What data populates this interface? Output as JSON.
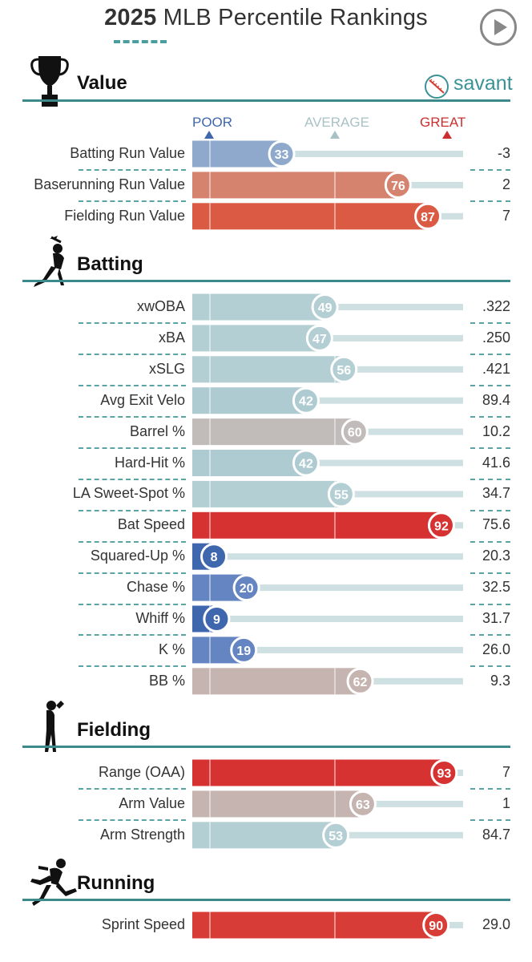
{
  "header": {
    "title_year": "2025",
    "title_rest": " MLB Percentile Rankings",
    "brand": "savant"
  },
  "scale": {
    "poor": "POOR",
    "average": "AVERAGE",
    "great": "GREAT"
  },
  "icons": {
    "value": "trophy-icon",
    "batting": "batter-silhouette-icon",
    "fielding": "fielder-silhouette-icon",
    "running": "runner-silhouette-icon",
    "brand": "baseball-icon",
    "play": "play-icon"
  },
  "chart_data": {
    "type": "bar",
    "title": "2025 MLB Percentile Rankings",
    "xlim": [
      0,
      100
    ],
    "sections": [
      {
        "name": "Value",
        "rows": [
          {
            "label": "Batting Run Value",
            "percentile": 33,
            "value": "-3",
            "color": "#8fa9cc"
          },
          {
            "label": "Baserunning Run Value",
            "percentile": 76,
            "value": "2",
            "color": "#d5836f"
          },
          {
            "label": "Fielding Run Value",
            "percentile": 87,
            "value": "7",
            "color": "#da5a44"
          }
        ]
      },
      {
        "name": "Batting",
        "rows": [
          {
            "label": "xwOBA",
            "percentile": 49,
            "value": ".322",
            "color": "#b4cfd3"
          },
          {
            "label": "xBA",
            "percentile": 47,
            "value": ".250",
            "color": "#b4cfd3"
          },
          {
            "label": "xSLG",
            "percentile": 56,
            "value": ".421",
            "color": "#b4cfd3"
          },
          {
            "label": "Avg Exit Velo",
            "percentile": 42,
            "value": "89.4",
            "color": "#aecbd2"
          },
          {
            "label": "Barrel %",
            "percentile": 60,
            "value": "10.2",
            "color": "#c1bbb9"
          },
          {
            "label": "Hard-Hit %",
            "percentile": 42,
            "value": "41.6",
            "color": "#aecbd2"
          },
          {
            "label": "LA Sweet-Spot %",
            "percentile": 55,
            "value": "34.7",
            "color": "#b4cfd3"
          },
          {
            "label": "Bat Speed",
            "percentile": 92,
            "value": "75.6",
            "color": "#d73232"
          },
          {
            "label": "Squared-Up %",
            "percentile": 8,
            "value": "20.3",
            "color": "#3e67ae"
          },
          {
            "label": "Chase %",
            "percentile": 20,
            "value": "32.5",
            "color": "#6485c1"
          },
          {
            "label": "Whiff %",
            "percentile": 9,
            "value": "31.7",
            "color": "#3e67ae"
          },
          {
            "label": "K %",
            "percentile": 19,
            "value": "26.0",
            "color": "#6485c1"
          },
          {
            "label": "BB %",
            "percentile": 62,
            "value": "9.3",
            "color": "#c6b4b0"
          }
        ]
      },
      {
        "name": "Fielding",
        "rows": [
          {
            "label": "Range (OAA)",
            "percentile": 93,
            "value": "7",
            "color": "#d73232"
          },
          {
            "label": "Arm Value",
            "percentile": 63,
            "value": "1",
            "color": "#c6b4b0"
          },
          {
            "label": "Arm Strength",
            "percentile": 53,
            "value": "84.7",
            "color": "#b4cfd3"
          }
        ]
      },
      {
        "name": "Running",
        "rows": [
          {
            "label": "Sprint Speed",
            "percentile": 90,
            "value": "29.0",
            "color": "#d83c36"
          }
        ]
      }
    ]
  }
}
